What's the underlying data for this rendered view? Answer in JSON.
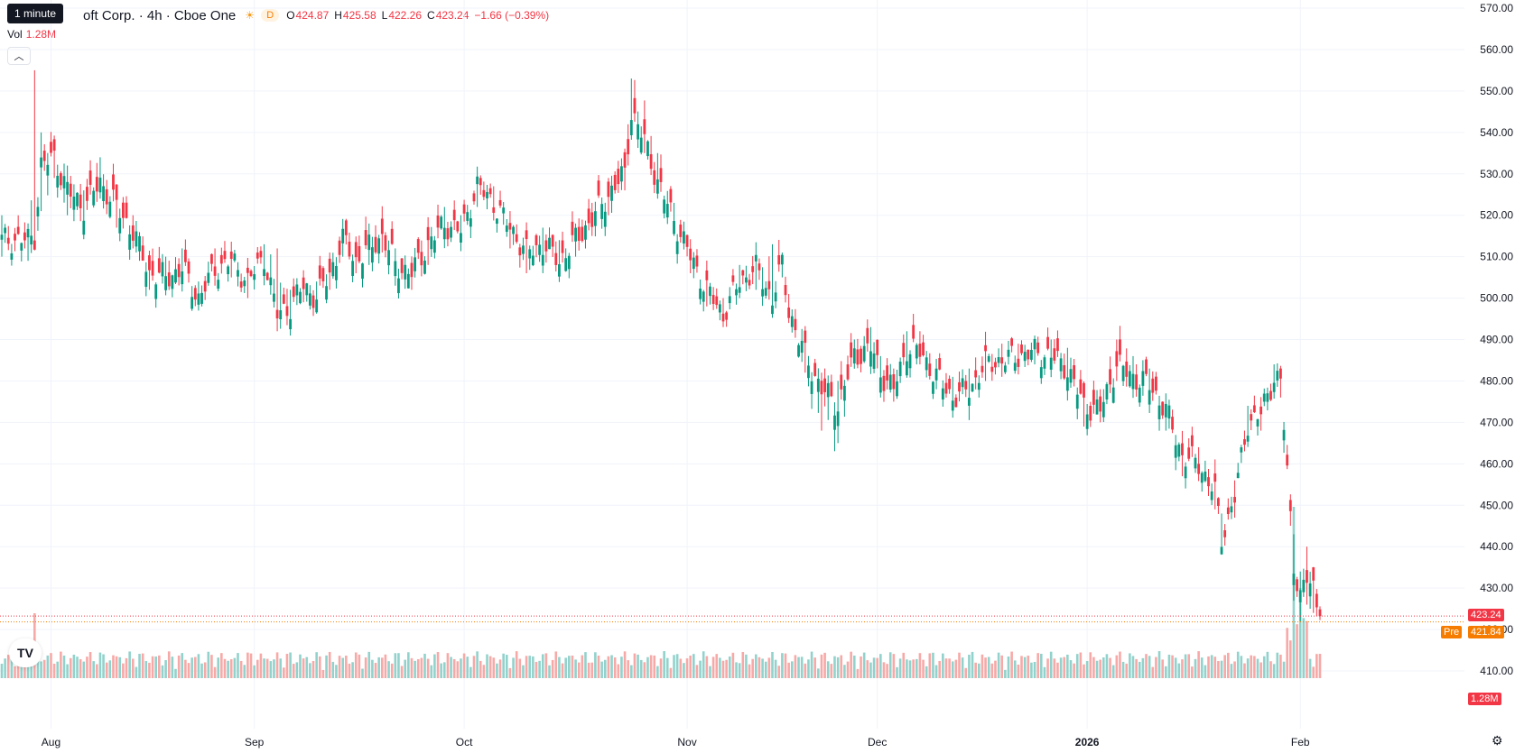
{
  "tooltip": "1 minute",
  "header": {
    "symbol": "oft Corp. · 4h · Cboe One",
    "badge": "D",
    "o_label": "O",
    "o_val": "424.87",
    "h_label": "H",
    "h_val": "425.58",
    "l_label": "L",
    "l_val": "422.26",
    "c_label": "C",
    "c_val": "423.24",
    "change": "−1.66 (−0.39%)"
  },
  "volume": {
    "label": "Vol",
    "value": "1.28M"
  },
  "collapse_icon": "chevron-up-icon",
  "price_tags": {
    "last": "423.24",
    "pre_label": "Pre",
    "pre": "421.84",
    "vol": "1.28M"
  },
  "colors": {
    "up": "#089981",
    "down": "#f23645",
    "up_vol": "#92d2cc",
    "down_vol": "#f7a9a7",
    "pre": "#f57c00"
  },
  "chart_data": {
    "type": "candlestick",
    "ylim": [
      406,
      572
    ],
    "y_ticks": [
      410,
      420,
      430,
      440,
      450,
      460,
      470,
      480,
      490,
      500,
      510,
      520,
      530,
      540,
      550,
      560,
      570
    ],
    "y_tick_labels": [
      "410.00",
      "420.00",
      "430.00",
      "440.00",
      "450.00",
      "460.00",
      "470.00",
      "480.00",
      "490.00",
      "500.00",
      "510.00",
      "520.00",
      "530.00",
      "540.00",
      "550.00",
      "560.00",
      "570.00"
    ],
    "x_labels": [
      {
        "label": "Aug",
        "bar": 15,
        "bold": false
      },
      {
        "label": "Sep",
        "bar": 77,
        "bold": false
      },
      {
        "label": "Oct",
        "bar": 141,
        "bold": false
      },
      {
        "label": "Nov",
        "bar": 209,
        "bold": false
      },
      {
        "label": "Dec",
        "bar": 267,
        "bold": false
      },
      {
        "label": "2026",
        "bar": 331,
        "bold": true
      },
      {
        "label": "Feb",
        "bar": 396,
        "bold": false
      }
    ],
    "last_price": 423.24,
    "pre_price": 421.84,
    "anchors": [
      [
        0,
        514,
        520,
        510
      ],
      [
        8,
        514,
        518,
        509
      ],
      [
        10,
        515,
        555,
        513
      ],
      [
        12,
        532,
        540,
        521
      ],
      [
        16,
        534,
        538,
        529
      ],
      [
        20,
        526,
        532,
        520
      ],
      [
        25,
        522,
        526,
        517
      ],
      [
        30,
        528,
        534,
        524
      ],
      [
        35,
        522,
        526,
        517
      ],
      [
        40,
        516,
        520,
        512
      ],
      [
        45,
        506,
        511,
        502
      ],
      [
        50,
        505,
        510,
        502
      ],
      [
        55,
        507,
        512,
        503
      ],
      [
        60,
        500,
        504,
        497
      ],
      [
        65,
        507,
        512,
        503
      ],
      [
        70,
        509,
        513,
        505
      ],
      [
        75,
        504,
        508,
        500
      ],
      [
        80,
        510,
        513,
        506
      ],
      [
        84,
        496,
        512,
        492
      ],
      [
        88,
        498,
        502,
        494
      ],
      [
        92,
        503,
        506,
        499
      ],
      [
        96,
        500,
        504,
        497
      ],
      [
        100,
        506,
        511,
        502
      ],
      [
        104,
        514,
        518,
        510
      ],
      [
        108,
        509,
        513,
        506
      ],
      [
        112,
        512,
        518,
        508
      ],
      [
        116,
        515,
        520,
        511
      ],
      [
        120,
        508,
        512,
        504
      ],
      [
        125,
        506,
        510,
        502
      ],
      [
        130,
        513,
        518,
        508
      ],
      [
        135,
        518,
        522,
        514
      ],
      [
        140,
        516,
        520,
        512
      ],
      [
        145,
        527,
        531,
        522
      ],
      [
        150,
        523,
        527,
        519
      ],
      [
        155,
        517,
        521,
        512
      ],
      [
        160,
        511,
        515,
        506
      ],
      [
        165,
        513,
        517,
        508
      ],
      [
        170,
        509,
        514,
        505
      ],
      [
        175,
        514,
        518,
        510
      ],
      [
        180,
        519,
        523,
        515
      ],
      [
        185,
        525,
        529,
        520
      ],
      [
        190,
        530,
        534,
        526
      ],
      [
        192,
        545,
        553,
        540
      ],
      [
        196,
        538,
        546,
        535
      ],
      [
        200,
        528,
        535,
        524
      ],
      [
        205,
        519,
        523,
        515
      ],
      [
        210,
        510,
        514,
        506
      ],
      [
        215,
        502,
        506,
        498
      ],
      [
        220,
        496,
        500,
        493
      ],
      [
        225,
        504,
        508,
        500
      ],
      [
        230,
        507,
        513,
        502
      ],
      [
        235,
        500,
        513,
        496
      ],
      [
        238,
        508,
        511,
        505
      ],
      [
        240,
        497,
        501,
        494
      ],
      [
        245,
        486,
        491,
        482
      ],
      [
        250,
        478,
        482,
        468
      ],
      [
        255,
        474,
        480,
        465
      ],
      [
        260,
        486,
        490,
        483
      ],
      [
        265,
        488,
        493,
        484
      ],
      [
        268,
        482,
        486,
        476
      ],
      [
        272,
        478,
        483,
        475
      ],
      [
        276,
        488,
        492,
        484
      ],
      [
        280,
        487,
        492,
        484
      ],
      [
        285,
        481,
        485,
        478
      ],
      [
        290,
        476,
        481,
        473
      ],
      [
        295,
        478,
        483,
        472
      ],
      [
        300,
        484,
        490,
        480
      ],
      [
        305,
        485,
        489,
        481
      ],
      [
        310,
        486,
        489,
        483
      ],
      [
        315,
        487,
        490,
        484
      ],
      [
        320,
        486,
        490,
        483
      ],
      [
        325,
        483,
        488,
        479
      ],
      [
        330,
        474,
        478,
        469
      ],
      [
        335,
        473,
        478,
        470
      ],
      [
        340,
        484,
        490,
        480
      ],
      [
        345,
        481,
        486,
        477
      ],
      [
        350,
        479,
        483,
        475
      ],
      [
        355,
        473,
        477,
        468
      ],
      [
        360,
        462,
        467,
        457
      ],
      [
        365,
        460,
        464,
        456
      ],
      [
        370,
        453,
        459,
        449
      ],
      [
        372,
        442,
        448,
        439
      ],
      [
        376,
        452,
        456,
        447
      ],
      [
        380,
        470,
        474,
        466
      ],
      [
        384,
        472,
        476,
        468
      ],
      [
        388,
        481,
        484,
        478
      ],
      [
        390,
        480,
        483,
        476
      ],
      [
        394,
        436,
        443,
        428
      ],
      [
        396,
        428,
        434,
        422
      ],
      [
        398,
        432,
        440,
        426
      ],
      [
        400,
        430,
        432,
        424
      ],
      [
        402,
        423,
        425,
        422
      ]
    ],
    "volume": {
      "max_label": "1.28M",
      "scale_max": 1.0
    }
  }
}
